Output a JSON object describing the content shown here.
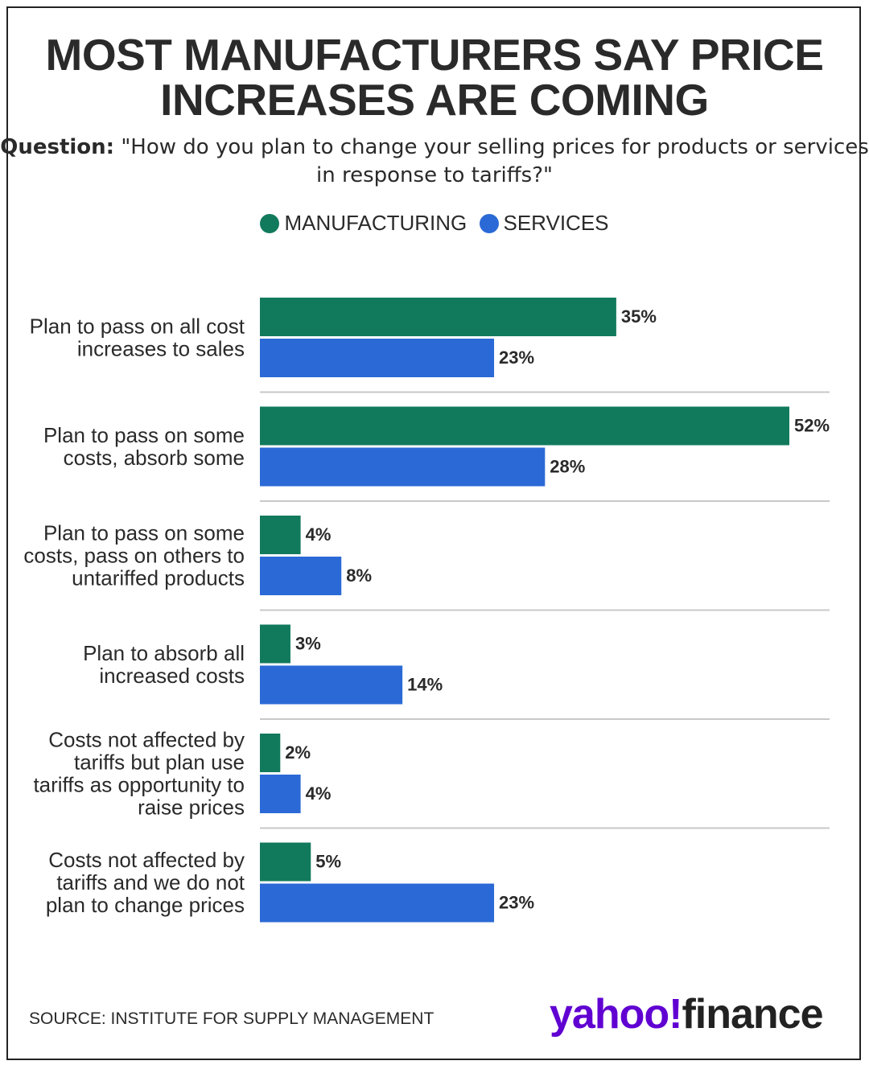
{
  "title_lines": [
    "MOST MANUFACTURERS SAY PRICE",
    "INCREASES ARE COMING"
  ],
  "question_label": "Question:",
  "question_text": "\"How do you plan to change your selling prices for products or services in response to tariffs?\"",
  "source": "SOURCE: INSTITUTE FOR SUPPLY MANAGEMENT",
  "logo": {
    "yahoo": "yahoo!",
    "finance": "finance"
  },
  "colors": {
    "manufacturing": "#127a5c",
    "services": "#2b6ad6",
    "text": "#2a2a2a",
    "divider": "#c8c8c8"
  },
  "chart_data": {
    "type": "bar",
    "orientation": "horizontal",
    "legend_position": "top",
    "grid": false,
    "xlim": [
      0,
      52
    ],
    "categories": [
      [
        "Plan to pass on all cost",
        "increases to sales"
      ],
      [
        "Plan to pass on some",
        "costs, absorb some"
      ],
      [
        "Plan to pass on some",
        "costs, pass on others to",
        "untariffed products"
      ],
      [
        "Plan to absorb all",
        "increased costs"
      ],
      [
        "Costs not affected by",
        "tariffs but plan use",
        "tariffs as opportunity to",
        "raise prices"
      ],
      [
        "Costs not affected by",
        "tariffs and we do not",
        "plan to change prices"
      ]
    ],
    "series": [
      {
        "name": "MANUFACTURING",
        "values": [
          35,
          52,
          4,
          3,
          2,
          5
        ],
        "labels": [
          "35%",
          "52%",
          "4%",
          "3%",
          "2%",
          "5%"
        ]
      },
      {
        "name": "SERVICES",
        "values": [
          23,
          28,
          8,
          14,
          4,
          23
        ],
        "labels": [
          "23%",
          "28%",
          "8%",
          "14%",
          "4%",
          "23%"
        ]
      }
    ]
  }
}
